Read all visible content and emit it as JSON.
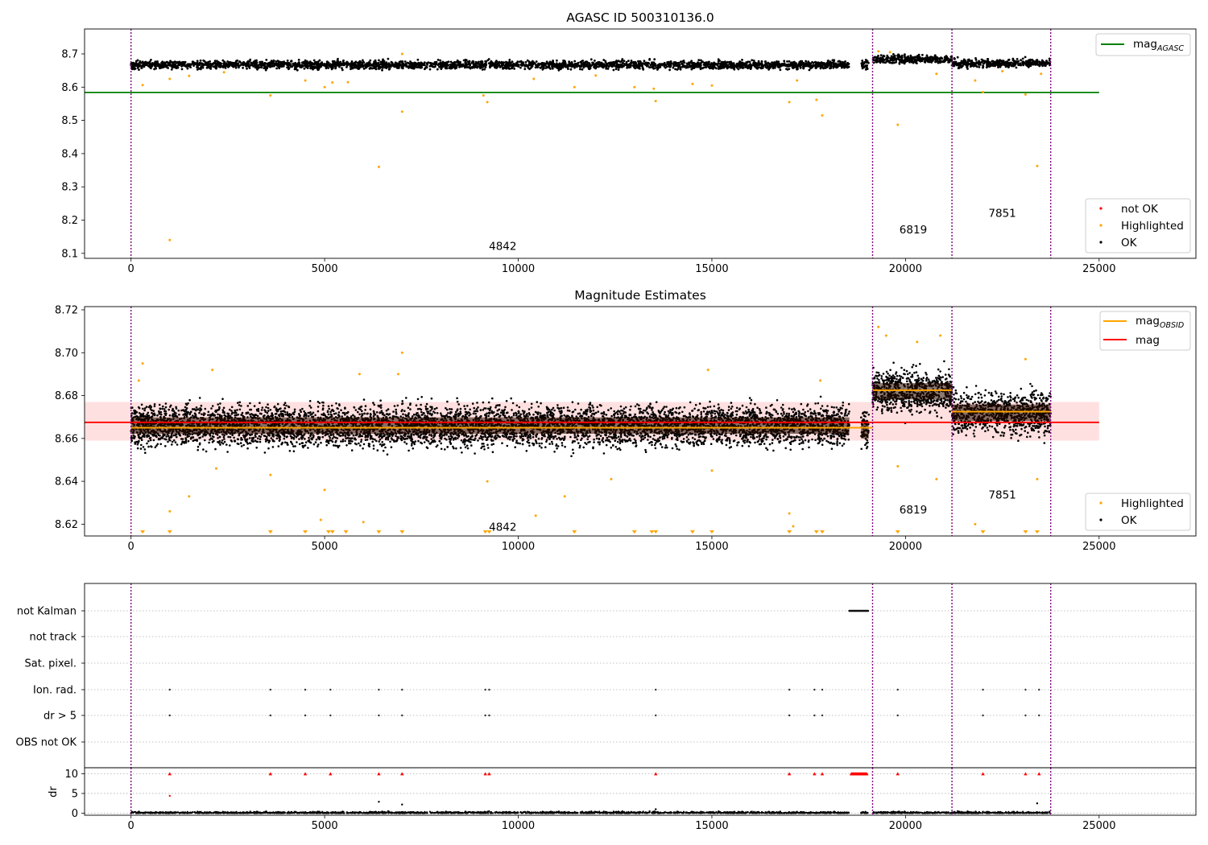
{
  "chart_data": [
    {
      "type": "scatter",
      "title": "AGASC ID 500310136.0",
      "xlim": [
        -1200,
        27500
      ],
      "ylim": [
        8.085,
        8.775
      ],
      "xticks": [
        0,
        5000,
        10000,
        15000,
        20000,
        25000
      ],
      "xtick_labels": [
        "0",
        "5000",
        "10000",
        "15000",
        "20000",
        "25000"
      ],
      "yticks": [
        8.1,
        8.2,
        8.3,
        8.4,
        8.5,
        8.6,
        8.7
      ],
      "ytick_labels": [
        "8.1",
        "8.2",
        "8.3",
        "8.4",
        "8.5",
        "8.6",
        "8.7"
      ],
      "obs_boundaries": [
        0,
        19150,
        21200,
        23750
      ],
      "obs_labels": [
        {
          "x": 9600,
          "y": 8.11,
          "text": "4842"
        },
        {
          "x": 20200,
          "y": 8.16,
          "text": "6819"
        },
        {
          "x": 22500,
          "y": 8.21,
          "text": "7851"
        }
      ],
      "hlines": [
        {
          "name": "mag_AGASC",
          "y": 8.584,
          "x0": -1200,
          "x1": 25000,
          "color": "#008000"
        }
      ],
      "ok_segments": [
        {
          "x0": 0,
          "x1": 18550,
          "y": 8.667,
          "spread": 0.011
        },
        {
          "x0": 18850,
          "x1": 19050,
          "y": 8.667,
          "spread": 0.012
        },
        {
          "x0": 19150,
          "x1": 21200,
          "y": 8.684,
          "spread": 0.011
        },
        {
          "x0": 21200,
          "x1": 23750,
          "y": 8.672,
          "spread": 0.011
        }
      ],
      "highlighted": [
        [
          1000,
          8.14
        ],
        [
          6400,
          8.36
        ],
        [
          7000,
          8.526
        ],
        [
          9200,
          8.555
        ],
        [
          9100,
          8.575
        ],
        [
          3600,
          8.575
        ],
        [
          13550,
          8.558
        ],
        [
          17000,
          8.555
        ],
        [
          17700,
          8.562
        ],
        [
          17850,
          8.515
        ],
        [
          19800,
          8.487
        ],
        [
          23400,
          8.363
        ],
        [
          23100,
          8.578
        ],
        [
          22000,
          8.585
        ],
        [
          300,
          8.606
        ],
        [
          1000,
          8.625
        ],
        [
          1500,
          8.634
        ],
        [
          4500,
          8.62
        ],
        [
          5000,
          8.6
        ],
        [
          5200,
          8.614
        ],
        [
          5600,
          8.615
        ],
        [
          10400,
          8.625
        ],
        [
          11450,
          8.6
        ],
        [
          13000,
          8.6
        ],
        [
          13500,
          8.595
        ],
        [
          14500,
          8.61
        ],
        [
          15000,
          8.605
        ],
        [
          17200,
          8.62
        ],
        [
          21800,
          8.62
        ],
        [
          23500,
          8.64
        ],
        [
          20800,
          8.64
        ],
        [
          7000,
          8.7
        ],
        [
          19300,
          8.708
        ],
        [
          19600,
          8.705
        ],
        [
          22500,
          8.648
        ],
        [
          12000,
          8.635
        ],
        [
          2400,
          8.645
        ]
      ],
      "legend": [
        {
          "label": "mag",
          "sub": "AGASC",
          "marker": "line",
          "color": "#008000"
        }
      ],
      "legend2": [
        {
          "label": "not OK",
          "marker": "dot",
          "color": "#ff0000"
        },
        {
          "label": "Highlighted",
          "marker": "dot",
          "color": "#ffa500"
        },
        {
          "label": "OK",
          "marker": "dot",
          "color": "#000000"
        }
      ]
    },
    {
      "type": "scatter",
      "title": "Magnitude Estimates",
      "xlim": [
        -1200,
        27500
      ],
      "ylim": [
        8.6145,
        8.7215
      ],
      "xticks": [
        0,
        5000,
        10000,
        15000,
        20000,
        25000
      ],
      "xtick_labels": [
        "0",
        "5000",
        "10000",
        "15000",
        "20000",
        "25000"
      ],
      "yticks": [
        8.62,
        8.64,
        8.66,
        8.68,
        8.7,
        8.72
      ],
      "ytick_labels": [
        "8.62",
        "8.64",
        "8.66",
        "8.68",
        "8.70",
        "8.72"
      ],
      "obs_boundaries": [
        0,
        19150,
        21200,
        23750
      ],
      "obs_labels": [
        {
          "x": 9600,
          "y": 8.617,
          "text": "4842"
        },
        {
          "x": 20200,
          "y": 8.625,
          "text": "6819"
        },
        {
          "x": 22500,
          "y": 8.632,
          "text": "7851"
        }
      ],
      "band": {
        "x0": -1200,
        "x1": 25000,
        "y0": 8.659,
        "y1": 8.677
      },
      "mag_line": {
        "y": 8.6675,
        "x0": -1200,
        "x1": 25000,
        "color": "#ff0000"
      },
      "obsid_lines": [
        {
          "x0": 0,
          "x1": 19150,
          "y": 8.665
        },
        {
          "x0": 19150,
          "x1": 21200,
          "y": 8.6825
        },
        {
          "x0": 21200,
          "x1": 23750,
          "y": 8.6725
        }
      ],
      "ok_segments": [
        {
          "x0": 0,
          "x1": 18550,
          "y": 8.666,
          "spread": 0.0085
        },
        {
          "x0": 18850,
          "x1": 19050,
          "y": 8.664,
          "spread": 0.009
        },
        {
          "x0": 19150,
          "x1": 21200,
          "y": 8.682,
          "spread": 0.0085
        },
        {
          "x0": 21200,
          "x1": 23750,
          "y": 8.672,
          "spread": 0.0085
        }
      ],
      "highlighted": [
        [
          1000,
          8.626
        ],
        [
          1500,
          8.633
        ],
        [
          5000,
          8.636
        ],
        [
          4900,
          8.622
        ],
        [
          6000,
          8.621
        ],
        [
          7000,
          8.7
        ],
        [
          9200,
          8.64
        ],
        [
          10450,
          8.624
        ],
        [
          11200,
          8.633
        ],
        [
          17000,
          8.625
        ],
        [
          17100,
          8.619
        ],
        [
          19800,
          8.647
        ],
        [
          20800,
          8.641
        ],
        [
          21800,
          8.62
        ],
        [
          23400,
          8.641
        ],
        [
          19300,
          8.712
        ],
        [
          19500,
          8.708
        ],
        [
          20300,
          8.705
        ],
        [
          20900,
          8.708
        ],
        [
          23100,
          8.697
        ],
        [
          200,
          8.687
        ],
        [
          2100,
          8.692
        ],
        [
          5900,
          8.69
        ],
        [
          14900,
          8.692
        ],
        [
          17800,
          8.687
        ],
        [
          6900,
          8.69
        ],
        [
          300,
          8.695
        ],
        [
          15000,
          8.645
        ],
        [
          12400,
          8.641
        ],
        [
          2200,
          8.646
        ],
        [
          3600,
          8.643
        ]
      ],
      "bottom_markers": [
        300,
        1000,
        3600,
        4500,
        5100,
        5200,
        5550,
        6400,
        7000,
        9150,
        9250,
        11450,
        13000,
        13450,
        13550,
        14500,
        15000,
        17000,
        17700,
        17850,
        19800,
        22000,
        23100,
        23400
      ],
      "legend": [
        {
          "label": "mag",
          "sub": "OBSID",
          "marker": "line",
          "color": "#ffa500"
        },
        {
          "label": "mag",
          "marker": "line",
          "color": "#ff0000"
        }
      ],
      "legend2": [
        {
          "label": "Highlighted",
          "marker": "dot",
          "color": "#ffa500"
        },
        {
          "label": "OK",
          "marker": "dot",
          "color": "#000000"
        }
      ]
    },
    {
      "type": "scatter",
      "xlim": [
        -1200,
        27500
      ],
      "xticks": [
        0,
        5000,
        10000,
        15000,
        20000,
        25000
      ],
      "xtick_labels": [
        "0",
        "5000",
        "10000",
        "15000",
        "20000",
        "25000"
      ],
      "obs_boundaries": [
        0,
        19150,
        21200,
        23750
      ],
      "flag_rows": [
        "not Kalman",
        "not track",
        "Sat. pixel.",
        "Ion. rad.",
        "dr > 5",
        "OBS not OK"
      ],
      "flag_points": {
        "not Kalman": {
          "ranges": [
            [
              18550,
              19050
            ]
          ],
          "points": []
        },
        "not track": {
          "ranges": [],
          "points": []
        },
        "Sat. pixel.": {
          "ranges": [],
          "points": []
        },
        "Ion. rad.": {
          "ranges": [],
          "points": [
            1000,
            3600,
            4500,
            5150,
            6400,
            7000,
            9150,
            9250,
            13550,
            17000,
            17650,
            17850,
            19800,
            22000,
            23100,
            23450
          ]
        },
        "dr > 5": {
          "ranges": [],
          "points": [
            1000,
            3600,
            4500,
            5150,
            6400,
            7000,
            9150,
            9250,
            13550,
            17000,
            17650,
            17850,
            19800,
            22000,
            23100,
            23450
          ]
        },
        "OBS not OK": {
          "ranges": [],
          "points": []
        }
      },
      "dr": {
        "ylabel": "dr",
        "ylim": [
          -0.5,
          11.5
        ],
        "yticks": [
          0,
          5,
          10
        ],
        "ytick_labels": [
          "0",
          "5",
          "10"
        ],
        "ok_segments": [
          [
            0,
            18550
          ],
          [
            18850,
            19050
          ],
          [
            19150,
            21200
          ],
          [
            21200,
            23750
          ]
        ],
        "red_points": [
          1000,
          3600,
          4500,
          5150,
          6400,
          7000,
          9150,
          9250,
          13550,
          17000,
          17650,
          17850,
          19800,
          22000,
          23100,
          23450
        ],
        "red_range": [
          18600,
          19000
        ],
        "outliers": [
          [
            1000,
            4.4
          ],
          [
            6400,
            2.9
          ],
          [
            7000,
            2.2
          ],
          [
            23400,
            2.5
          ],
          [
            13550,
            1.0
          ]
        ]
      }
    }
  ]
}
